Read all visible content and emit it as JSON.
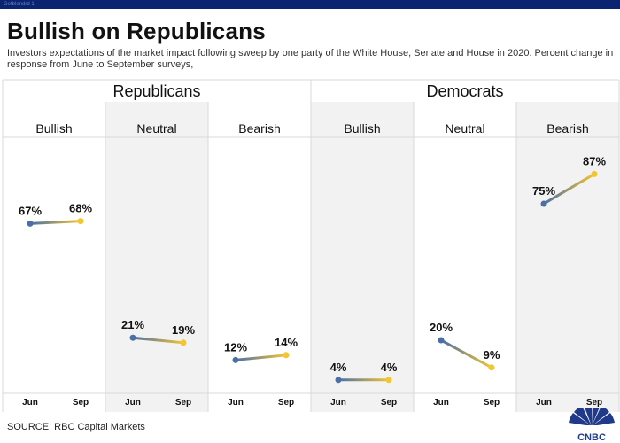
{
  "header": {
    "tab_label": "Getblendrd 1",
    "title": "Bullish on Republicans",
    "subtitle": "Investors expectations of the market impact following sweep by one party of the White House, Senate and House in 2020. Percent change in response from June to September surveys,"
  },
  "footer": {
    "source": "SOURCE: RBC Capital Markets",
    "logo_text": "CNBC"
  },
  "colors": {
    "jun": "#4a6fa5",
    "sep": "#f2c531",
    "shade": "#f2f2f2",
    "grid": "#d9d9d9"
  },
  "chart_data": {
    "type": "line",
    "ylim": [
      0,
      100
    ],
    "groups": [
      {
        "label": "Republicans",
        "panels": [
          0,
          1,
          2
        ]
      },
      {
        "label": "Democrats",
        "panels": [
          3,
          4,
          5
        ]
      }
    ],
    "panels": [
      {
        "label": "Bullish",
        "x": [
          "Jun",
          "Sep"
        ],
        "values": [
          67,
          68
        ],
        "value_labels": [
          "67%",
          "68%"
        ],
        "shaded": false
      },
      {
        "label": "Neutral",
        "x": [
          "Jun",
          "Sep"
        ],
        "values": [
          21,
          19
        ],
        "value_labels": [
          "21%",
          "19%"
        ],
        "shaded": true
      },
      {
        "label": "Bearish",
        "x": [
          "Jun",
          "Sep"
        ],
        "values": [
          12,
          14
        ],
        "value_labels": [
          "12%",
          "14%"
        ],
        "shaded": false
      },
      {
        "label": "Bullish",
        "x": [
          "Jun",
          "Sep"
        ],
        "values": [
          4,
          4
        ],
        "value_labels": [
          "4%",
          "4%"
        ],
        "shaded": true
      },
      {
        "label": "Neutral",
        "x": [
          "Jun",
          "Sep"
        ],
        "values": [
          20,
          9
        ],
        "value_labels": [
          "20%",
          "9%"
        ],
        "shaded": false
      },
      {
        "label": "Bearish",
        "x": [
          "Jun",
          "Sep"
        ],
        "values": [
          75,
          87
        ],
        "value_labels": [
          "75%",
          "87%"
        ],
        "shaded": true
      }
    ]
  }
}
